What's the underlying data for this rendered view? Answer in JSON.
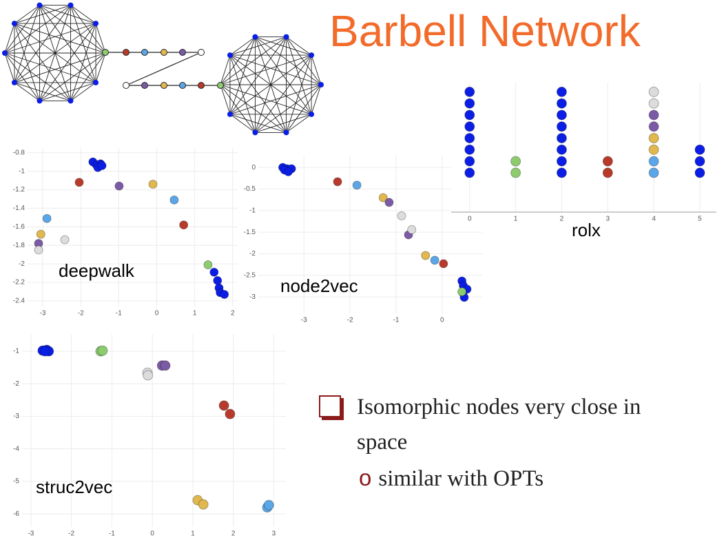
{
  "title": "Barbell Network",
  "bullets": {
    "main": "Isomorphic nodes very close in space",
    "sub": "similar with OPTs"
  },
  "chart_data": [
    {
      "type": "scatter",
      "label": "deepwalk",
      "xlim": [
        -3.4,
        2.13
      ],
      "ylim": [
        -2.46,
        -0.75
      ],
      "xticks": [
        -3,
        -2,
        -1,
        0,
        1,
        2
      ],
      "yticks": [
        -0.8,
        -1,
        -1.2,
        -1.4,
        -1.6,
        -1.8,
        -2,
        -2.2,
        -2.4
      ],
      "grid": true,
      "series": [
        {
          "color": "#0b1ee6",
          "x": [
            -1.68,
            -1.59,
            -1.48,
            -1.55,
            -1.44,
            1.51,
            1.6,
            1.64,
            1.67,
            1.78
          ],
          "values": [
            -0.9,
            -0.93,
            -0.92,
            -0.96,
            -0.94,
            -2.09,
            -2.18,
            -2.26,
            -2.31,
            -2.33
          ]
        },
        {
          "color": "#8dcb6f",
          "x": [
            1.35
          ],
          "values": [
            -2.01
          ]
        },
        {
          "color": "#b83a2b",
          "x": [
            -2.04,
            0.71
          ],
          "values": [
            -1.12,
            -1.58
          ]
        },
        {
          "color": "#5ba6e6",
          "x": [
            0.46,
            -2.89
          ],
          "values": [
            -1.31,
            -1.51
          ]
        },
        {
          "color": "#e0b84e",
          "x": [
            -0.1,
            -3.05
          ],
          "values": [
            -1.14,
            -1.68
          ]
        },
        {
          "color": "#7b5aa6",
          "x": [
            -0.99,
            -3.11
          ],
          "values": [
            -1.16,
            -1.78
          ]
        },
        {
          "color": "#dcdcdc",
          "x": [
            -2.42,
            -3.11
          ],
          "values": [
            -1.74,
            -1.85
          ]
        }
      ]
    },
    {
      "type": "scatter",
      "label": "node2vec",
      "xlim": [
        -3.99,
        0.87
      ],
      "ylim": [
        -3.38,
        0.29
      ],
      "xticks": [
        -3,
        -2,
        -1,
        0
      ],
      "yticks": [
        0,
        -0.5,
        -1,
        -1.5,
        -2,
        -2.5,
        -3
      ],
      "grid": true,
      "series": [
        {
          "color": "#0b1ee6",
          "x": [
            -3.46,
            -3.37,
            -3.27,
            -3.42,
            -3.34,
            0.43,
            0.46,
            0.54,
            0.45,
            0.48
          ],
          "values": [
            0,
            -0.03,
            -0.03,
            -0.06,
            -0.1,
            -2.63,
            -2.74,
            -2.82,
            -2.9,
            -3.01
          ]
        },
        {
          "color": "#8dcb6f",
          "x": [
            0.43
          ],
          "values": [
            -2.88
          ]
        },
        {
          "color": "#b83a2b",
          "x": [
            -2.27,
            0.03
          ],
          "values": [
            -0.33,
            -2.23
          ]
        },
        {
          "color": "#5ba6e6",
          "x": [
            -1.85,
            -0.16
          ],
          "values": [
            -0.41,
            -2.15
          ]
        },
        {
          "color": "#e0b84e",
          "x": [
            -1.28,
            -0.36
          ],
          "values": [
            -0.7,
            -2.04
          ]
        },
        {
          "color": "#7b5aa6",
          "x": [
            -1.15,
            -0.73
          ],
          "values": [
            -0.81,
            -1.56
          ]
        },
        {
          "color": "#dcdcdc",
          "x": [
            -0.88,
            -0.66
          ],
          "values": [
            -1.12,
            -1.44
          ]
        }
      ]
    },
    {
      "type": "scatter",
      "label": "rolx",
      "xlim": [
        -0.4,
        5.36
      ],
      "ylim": [
        -3.4,
        7.8
      ],
      "xticks": [
        0,
        1,
        2,
        3,
        4,
        5
      ],
      "grid": true,
      "series": [
        {
          "color": "#0b1ee6",
          "x": [
            0,
            0,
            0,
            0,
            0,
            0,
            0,
            0,
            2,
            2,
            2,
            2,
            2,
            2,
            2,
            2,
            5,
            5,
            5
          ],
          "values": [
            0,
            1,
            2,
            3,
            4,
            5,
            6,
            7,
            0,
            1,
            2,
            3,
            4,
            5,
            6,
            7,
            0,
            1,
            2
          ]
        },
        {
          "color": "#8dcb6f",
          "x": [
            1,
            1
          ],
          "values": [
            0,
            1
          ]
        },
        {
          "color": "#b83a2b",
          "x": [
            3,
            3
          ],
          "values": [
            0,
            1
          ]
        },
        {
          "color": "#5ba6e6",
          "x": [
            4,
            4
          ],
          "values": [
            0,
            1
          ]
        },
        {
          "color": "#e0b84e",
          "x": [
            4,
            4
          ],
          "values": [
            2,
            3
          ]
        },
        {
          "color": "#7b5aa6",
          "x": [
            4,
            4
          ],
          "values": [
            4,
            5
          ]
        },
        {
          "color": "#dcdcdc",
          "x": [
            4,
            4
          ],
          "values": [
            6,
            7
          ]
        }
      ]
    },
    {
      "type": "scatter",
      "label": "struc2vec",
      "xlim": [
        -3.22,
        3.3
      ],
      "ylim": [
        -6.4,
        -0.47
      ],
      "xticks": [
        -3,
        -2,
        -1,
        0,
        1,
        2,
        3
      ],
      "yticks": [
        -1,
        -2,
        -3,
        -4,
        -5,
        -6
      ],
      "grid": true,
      "series": [
        {
          "color": "#0b1ee6",
          "x": [
            -2.71,
            -2.61,
            -2.56,
            -2.65
          ],
          "values": [
            -0.98,
            -0.96,
            -1,
            -1
          ]
        },
        {
          "color": "#8dcb6f",
          "x": [
            -1.28,
            -1.23
          ],
          "values": [
            -1,
            -0.98
          ]
        },
        {
          "color": "#dcdcdc",
          "x": [
            -0.12,
            -0.11
          ],
          "values": [
            -1.66,
            -1.74
          ]
        },
        {
          "color": "#7b5aa6",
          "x": [
            0.24,
            0.32
          ],
          "values": [
            -1.44,
            -1.44
          ]
        },
        {
          "color": "#b83a2b",
          "x": [
            1.77,
            1.92
          ],
          "values": [
            -2.67,
            -2.93
          ]
        },
        {
          "color": "#e0b84e",
          "x": [
            1.12,
            1.26
          ],
          "values": [
            -5.58,
            -5.71
          ]
        },
        {
          "color": "#5ba6e6",
          "x": [
            2.84,
            2.88
          ],
          "values": [
            -5.8,
            -5.73
          ]
        }
      ]
    }
  ]
}
